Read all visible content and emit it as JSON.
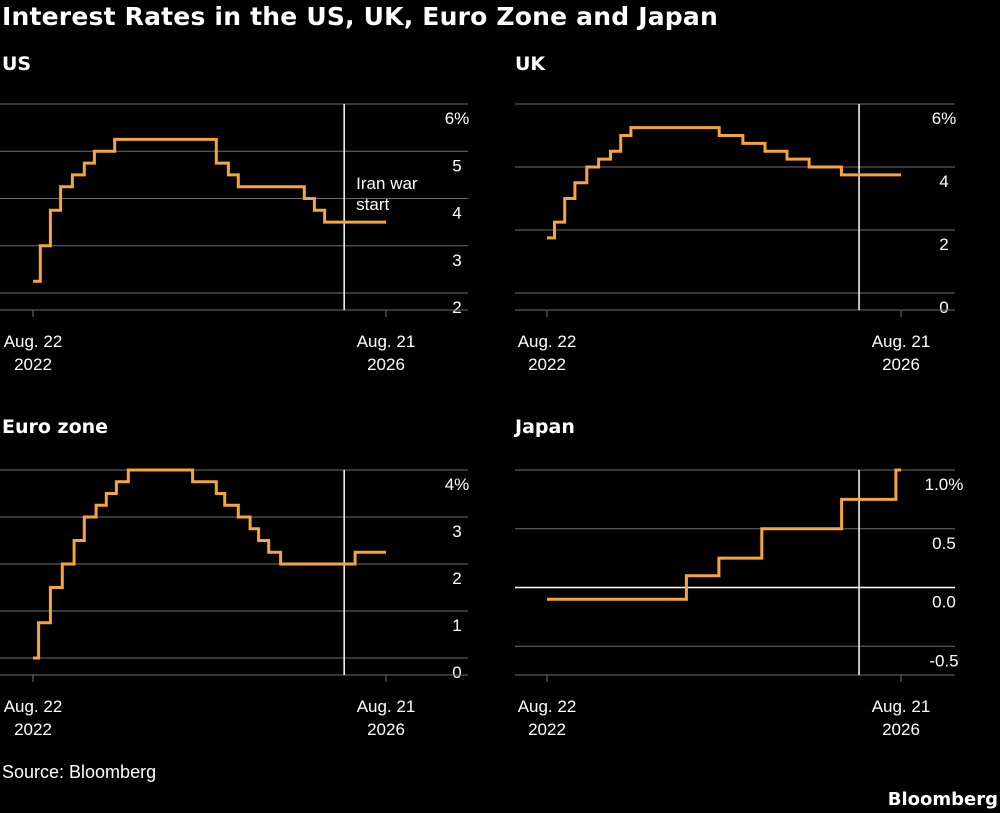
{
  "title": "Interest Rates in the US, UK, Euro Zone and Japan",
  "source": "Source: Bloomberg",
  "brand": "Bloomberg",
  "colors": {
    "background": "#000000",
    "line": "#f5a53a",
    "grid": "#6e6e6e",
    "text": "#ffffff",
    "marker": "#ffffff"
  },
  "chart_data": [
    {
      "type": "line",
      "title": "US",
      "x_tick_labels": [
        [
          "Aug. 22",
          "2022"
        ],
        [
          "Aug. 21",
          "2026"
        ]
      ],
      "xlim": [
        "2022-08-22",
        "2026-08-21"
      ],
      "ylim": [
        2,
        6
      ],
      "y_ticks": [
        2,
        3,
        4,
        5,
        6
      ],
      "y_tick_labels": [
        "2",
        "3",
        "4",
        "5",
        "6%"
      ],
      "grid": true,
      "marker_date": "2026-03-01",
      "annotation": [
        "Iran war",
        "start"
      ],
      "x": [
        "2022-08-22",
        "2022-09-21",
        "2022-11-02",
        "2022-12-14",
        "2023-02-01",
        "2023-03-22",
        "2023-05-03",
        "2023-07-26",
        "2024-09-18",
        "2024-11-07",
        "2024-12-18",
        "2025-09-17",
        "2025-10-29",
        "2025-12-10",
        "2026-08-21"
      ],
      "values": [
        2.25,
        3.0,
        3.75,
        4.25,
        4.5,
        4.75,
        5.0,
        5.25,
        4.75,
        4.5,
        4.25,
        4.0,
        3.75,
        3.5,
        3.5
      ]
    },
    {
      "type": "line",
      "title": "UK",
      "x_tick_labels": [
        [
          "Aug. 22",
          "2022"
        ],
        [
          "Aug. 21",
          "2026"
        ]
      ],
      "xlim": [
        "2022-08-22",
        "2026-08-21"
      ],
      "ylim": [
        0,
        6
      ],
      "y_ticks": [
        0,
        2,
        4,
        6
      ],
      "y_tick_labels": [
        "0",
        "2",
        "4",
        "6%"
      ],
      "grid": true,
      "marker_date": "2026-03-01",
      "x": [
        "2022-08-22",
        "2022-09-22",
        "2022-11-03",
        "2022-12-15",
        "2023-02-02",
        "2023-03-23",
        "2023-05-11",
        "2023-06-22",
        "2023-08-03",
        "2024-08-01",
        "2024-11-07",
        "2025-02-06",
        "2025-05-08",
        "2025-08-07",
        "2025-12-18",
        "2026-08-21"
      ],
      "values": [
        1.75,
        2.25,
        3.0,
        3.5,
        4.0,
        4.25,
        4.5,
        5.0,
        5.25,
        5.0,
        4.75,
        4.5,
        4.25,
        4.0,
        3.75,
        3.75
      ]
    },
    {
      "type": "line",
      "title": "Euro zone",
      "x_tick_labels": [
        [
          "Aug. 22",
          "2022"
        ],
        [
          "Aug. 21",
          "2026"
        ]
      ],
      "xlim": [
        "2022-08-22",
        "2026-08-21"
      ],
      "ylim": [
        0,
        4
      ],
      "y_ticks": [
        0,
        1,
        2,
        3,
        4
      ],
      "y_tick_labels": [
        "0",
        "1",
        "2",
        "3",
        "4%"
      ],
      "grid": true,
      "marker_date": "2026-03-01",
      "x": [
        "2022-08-22",
        "2022-09-14",
        "2022-11-02",
        "2022-12-21",
        "2023-02-08",
        "2023-03-22",
        "2023-05-10",
        "2023-06-21",
        "2023-08-02",
        "2023-09-20",
        "2024-06-12",
        "2024-09-18",
        "2024-10-23",
        "2024-12-18",
        "2025-02-05",
        "2025-03-12",
        "2025-04-23",
        "2025-06-11",
        "2026-04-15",
        "2026-08-21"
      ],
      "values": [
        0.0,
        0.75,
        1.5,
        2.0,
        2.5,
        3.0,
        3.25,
        3.5,
        3.75,
        4.0,
        3.75,
        3.5,
        3.25,
        3.0,
        2.75,
        2.5,
        2.25,
        2.0,
        2.25,
        2.25
      ]
    },
    {
      "type": "line",
      "title": "Japan",
      "x_tick_labels": [
        [
          "Aug. 22",
          "2022"
        ],
        [
          "Aug. 21",
          "2026"
        ]
      ],
      "xlim": [
        "2022-08-22",
        "2026-08-21"
      ],
      "ylim": [
        -0.6,
        1.0
      ],
      "y_ticks": [
        -0.5,
        0.0,
        0.5,
        1.0
      ],
      "y_tick_labels": [
        "-0.5",
        "0.0",
        "0.5",
        "1.0%"
      ],
      "grid": true,
      "zero_line": true,
      "marker_date": "2026-03-01",
      "x": [
        "2022-08-22",
        "2024-03-19",
        "2024-07-31",
        "2025-01-24",
        "2025-12-19",
        "2026-07-31",
        "2026-08-21"
      ],
      "values": [
        -0.1,
        0.1,
        0.25,
        0.5,
        0.75,
        1.0,
        1.0
      ]
    }
  ]
}
